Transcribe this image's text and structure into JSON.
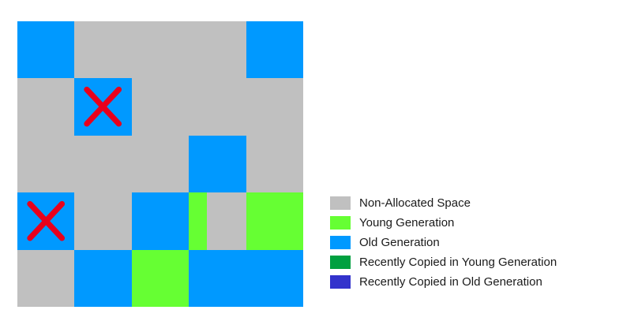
{
  "colors": {
    "non_allocated": "#c0c0c0",
    "young": "#66ff33",
    "old": "#0099ff",
    "recent_young": "#00a040",
    "recent_old": "#3333cc",
    "cross_mark": "#e8001c"
  },
  "grid": {
    "rows": 5,
    "cols": 5,
    "cells": [
      [
        "old",
        "none",
        "none",
        "none",
        "old"
      ],
      [
        "none",
        "old-x",
        "none",
        "none",
        "none"
      ],
      [
        "none",
        "none",
        "none",
        "old",
        "none"
      ],
      [
        "old-x",
        "none",
        "old",
        "split-young",
        "young"
      ],
      [
        "none",
        "old",
        "young",
        "old",
        "old"
      ]
    ]
  },
  "legend": [
    {
      "label": "Non-Allocated Space",
      "color_key": "non_allocated"
    },
    {
      "label": "Young Generation",
      "color_key": "young"
    },
    {
      "label": "Old Generation",
      "color_key": "old"
    },
    {
      "label": "Recently Copied in Young Generation",
      "color_key": "recent_young"
    },
    {
      "label": "Recently Copied in Old Generation",
      "color_key": "recent_old"
    }
  ]
}
